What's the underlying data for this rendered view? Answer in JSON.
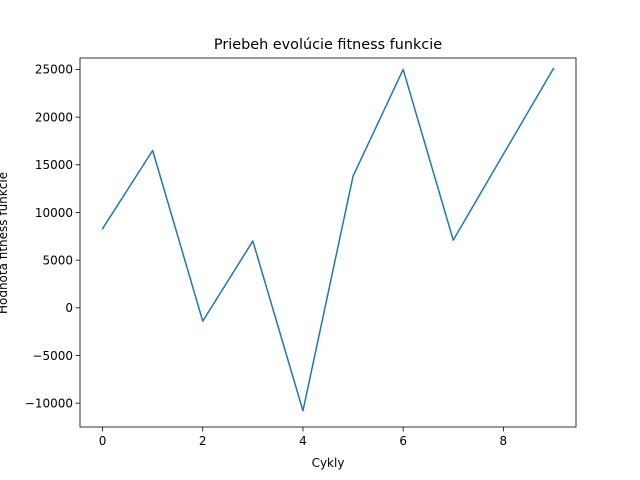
{
  "chart_data": {
    "type": "line",
    "title": "Priebeh evolúcie fitness funkcie",
    "xlabel": "Cykly",
    "ylabel": "Hodnota fitness funkcie",
    "xlim": [
      -0.45,
      9.45
    ],
    "ylim": [
      -12500,
      26200
    ],
    "xticks": [
      0,
      2,
      4,
      6,
      8
    ],
    "yticks": [
      -10000,
      -5000,
      0,
      5000,
      10000,
      15000,
      20000,
      25000
    ],
    "grid": false,
    "legend": "none",
    "series": [
      {
        "color": "#1f77b4",
        "x": [
          0,
          1,
          2,
          3,
          4,
          5,
          6,
          7,
          8,
          9
        ],
        "values": [
          8300,
          16500,
          -1400,
          7000,
          -10800,
          13800,
          25000,
          7100,
          16100,
          25100
        ]
      }
    ]
  }
}
